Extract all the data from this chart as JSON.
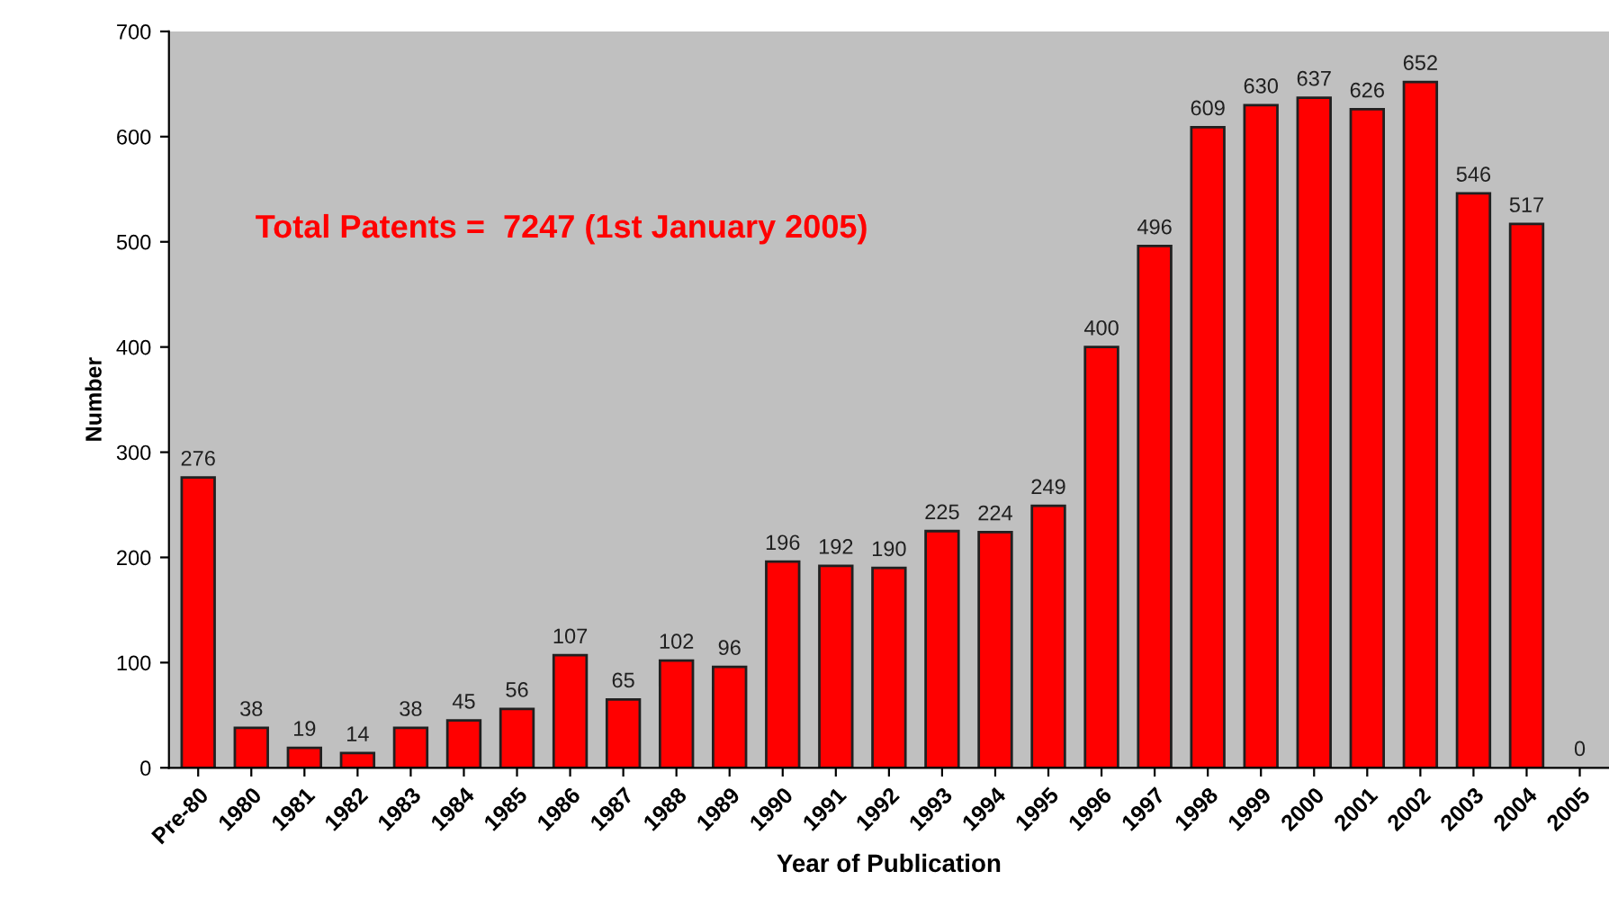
{
  "chart_data": {
    "type": "bar",
    "xlabel": "Year of Publication",
    "ylabel": "Number",
    "categories": [
      "Pre-80",
      "1980",
      "1981",
      "1982",
      "1983",
      "1984",
      "1985",
      "1986",
      "1987",
      "1988",
      "1989",
      "1990",
      "1991",
      "1992",
      "1993",
      "1994",
      "1995",
      "1996",
      "1997",
      "1998",
      "1999",
      "2000",
      "2001",
      "2002",
      "2003",
      "2004",
      "2005"
    ],
    "values": [
      276,
      38,
      19,
      14,
      38,
      45,
      56,
      107,
      65,
      102,
      96,
      196,
      192,
      190,
      225,
      224,
      249,
      400,
      496,
      609,
      630,
      637,
      626,
      652,
      546,
      517,
      0
    ],
    "color": "#ff0000",
    "ylim": [
      0,
      700
    ],
    "yticks": [
      0,
      100,
      200,
      300,
      400,
      500,
      600,
      700
    ],
    "data_labels": true,
    "grid": false,
    "legend": false,
    "annotations": [
      "Total Patents =  7247 (1st January 2005)"
    ]
  }
}
